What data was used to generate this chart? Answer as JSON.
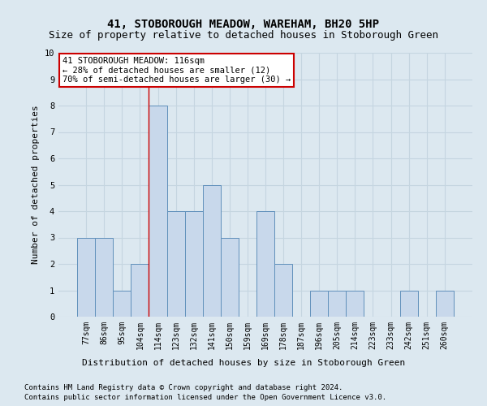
{
  "title": "41, STOBOROUGH MEADOW, WAREHAM, BH20 5HP",
  "subtitle": "Size of property relative to detached houses in Stoborough Green",
  "xlabel": "Distribution of detached houses by size in Stoborough Green",
  "ylabel": "Number of detached properties",
  "footnote1": "Contains HM Land Registry data © Crown copyright and database right 2024.",
  "footnote2": "Contains public sector information licensed under the Open Government Licence v3.0.",
  "bin_labels": [
    "77sqm",
    "86sqm",
    "95sqm",
    "104sqm",
    "114sqm",
    "123sqm",
    "132sqm",
    "141sqm",
    "150sqm",
    "159sqm",
    "169sqm",
    "178sqm",
    "187sqm",
    "196sqm",
    "205sqm",
    "214sqm",
    "223sqm",
    "233sqm",
    "242sqm",
    "251sqm",
    "260sqm"
  ],
  "values": [
    3,
    3,
    1,
    2,
    8,
    4,
    4,
    5,
    3,
    0,
    4,
    2,
    0,
    1,
    1,
    1,
    0,
    0,
    1,
    0,
    1
  ],
  "bar_color": "#c8d8eb",
  "bar_edgecolor": "#6090bb",
  "property_index": 4,
  "annotation_line1": "41 STOBOROUGH MEADOW: 116sqm",
  "annotation_line2": "← 28% of detached houses are smaller (12)",
  "annotation_line3": "70% of semi-detached houses are larger (30) →",
  "vline_color": "#cc0000",
  "ylim": [
    0,
    10
  ],
  "yticks": [
    0,
    1,
    2,
    3,
    4,
    5,
    6,
    7,
    8,
    9,
    10
  ],
  "background_color": "#dce8f0",
  "plot_bg_color": "#dce8f0",
  "grid_color": "#c5d5e0",
  "annotation_box_color": "#ffffff",
  "annotation_box_edge": "#cc0000",
  "title_fontsize": 10,
  "subtitle_fontsize": 9,
  "axis_label_fontsize": 8,
  "tick_fontsize": 7,
  "annotation_fontsize": 7.5,
  "footnote_fontsize": 6.5
}
